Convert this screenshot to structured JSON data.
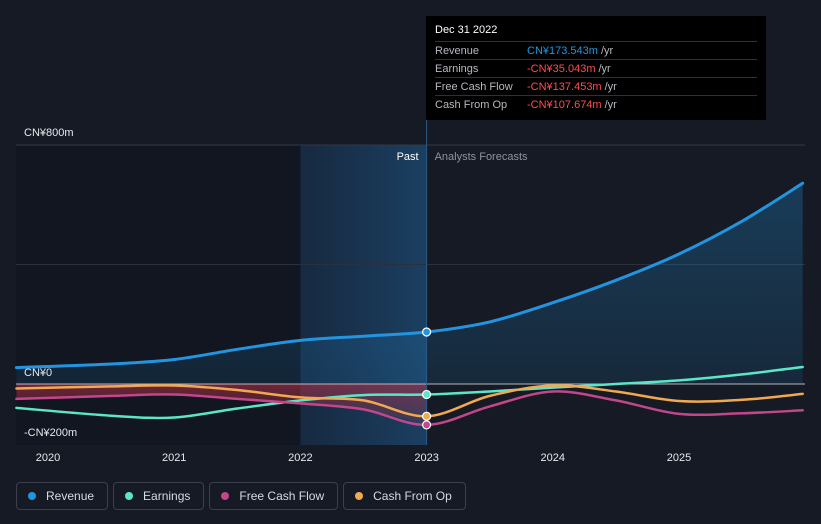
{
  "colors": {
    "revenue": "#2394df",
    "earnings": "#5ce6c8",
    "free_cash_flow": "#c2468a",
    "cash_from_op": "#f0a950",
    "background": "#151a24"
  },
  "tooltip": {
    "date": "Dec 31 2022",
    "rows": [
      {
        "label": "Revenue",
        "value": "CN¥173.543m",
        "unit": "/yr",
        "color": "#2394df"
      },
      {
        "label": "Earnings",
        "value": "-CN¥35.043m",
        "unit": "/yr",
        "color": "#ff4d4d"
      },
      {
        "label": "Free Cash Flow",
        "value": "-CN¥137.453m",
        "unit": "/yr",
        "color": "#ff4d4d"
      },
      {
        "label": "Cash From Op",
        "value": "-CN¥107.674m",
        "unit": "/yr",
        "color": "#ff4d4d"
      }
    ]
  },
  "legend": [
    {
      "label": "Revenue",
      "color": "#2394df"
    },
    {
      "label": "Earnings",
      "color": "#5ce6c8"
    },
    {
      "label": "Free Cash Flow",
      "color": "#c2468a"
    },
    {
      "label": "Cash From Op",
      "color": "#f0a950"
    }
  ],
  "chart_data": {
    "type": "line",
    "title": "",
    "xlabel": "",
    "ylabel": "",
    "ylim": [
      -200,
      800
    ],
    "x_range": [
      2019.75,
      2025.98
    ],
    "y_ticks": [
      {
        "value": 800,
        "label": "CN¥800m"
      },
      {
        "value": 0,
        "label": "CN¥0"
      },
      {
        "value": -200,
        "label": "-CN¥200m"
      }
    ],
    "x_ticks": [
      {
        "value": 2020,
        "label": "2020"
      },
      {
        "value": 2021,
        "label": "2021"
      },
      {
        "value": 2022,
        "label": "2022"
      },
      {
        "value": 2023,
        "label": "2023"
      },
      {
        "value": 2024,
        "label": "2024"
      },
      {
        "value": 2025,
        "label": "2025"
      }
    ],
    "divider_x": 2023,
    "highlight_start": 2022,
    "past_label": "Past",
    "forecast_label": "Analysts Forecasts",
    "series": [
      {
        "name": "Revenue",
        "key": "revenue",
        "points": [
          [
            2019.75,
            55
          ],
          [
            2020.5,
            67
          ],
          [
            2021,
            82
          ],
          [
            2021.5,
            116
          ],
          [
            2022,
            146
          ],
          [
            2022.5,
            160
          ],
          [
            2023,
            174
          ],
          [
            2023.5,
            208
          ],
          [
            2024,
            272
          ],
          [
            2024.5,
            347
          ],
          [
            2025,
            435
          ],
          [
            2025.5,
            545
          ],
          [
            2025.98,
            672
          ]
        ]
      },
      {
        "name": "Earnings",
        "key": "earnings",
        "points": [
          [
            2019.75,
            -80
          ],
          [
            2020.5,
            -106
          ],
          [
            2021,
            -112
          ],
          [
            2021.5,
            -82
          ],
          [
            2022,
            -55
          ],
          [
            2022.5,
            -37
          ],
          [
            2023,
            -35
          ],
          [
            2023.5,
            -25
          ],
          [
            2024,
            -12
          ],
          [
            2024.5,
            0
          ],
          [
            2025,
            12
          ],
          [
            2025.5,
            32
          ],
          [
            2025.98,
            57
          ]
        ]
      },
      {
        "name": "Free Cash Flow",
        "key": "free_cash_flow",
        "points": [
          [
            2019.75,
            -50
          ],
          [
            2020.5,
            -40
          ],
          [
            2021,
            -35
          ],
          [
            2021.5,
            -50
          ],
          [
            2022,
            -65
          ],
          [
            2022.5,
            -85
          ],
          [
            2023,
            -137
          ],
          [
            2023.5,
            -75
          ],
          [
            2024,
            -25
          ],
          [
            2024.5,
            -55
          ],
          [
            2025,
            -100
          ],
          [
            2025.5,
            -98
          ],
          [
            2025.98,
            -88
          ]
        ]
      },
      {
        "name": "Cash From Op",
        "key": "cash_from_op",
        "points": [
          [
            2019.75,
            -15
          ],
          [
            2020.5,
            -8
          ],
          [
            2021,
            -5
          ],
          [
            2021.5,
            -20
          ],
          [
            2022,
            -45
          ],
          [
            2022.5,
            -55
          ],
          [
            2023,
            -108
          ],
          [
            2023.5,
            -40
          ],
          [
            2024,
            -5
          ],
          [
            2024.5,
            -25
          ],
          [
            2025,
            -57
          ],
          [
            2025.5,
            -53
          ],
          [
            2025.98,
            -33
          ]
        ]
      }
    ],
    "markers": [
      {
        "series": "revenue",
        "x": 2023,
        "y": 174
      },
      {
        "series": "earnings",
        "x": 2023,
        "y": -35
      },
      {
        "series": "cash_from_op",
        "x": 2023,
        "y": -108
      },
      {
        "series": "free_cash_flow",
        "x": 2023,
        "y": -137
      }
    ]
  }
}
